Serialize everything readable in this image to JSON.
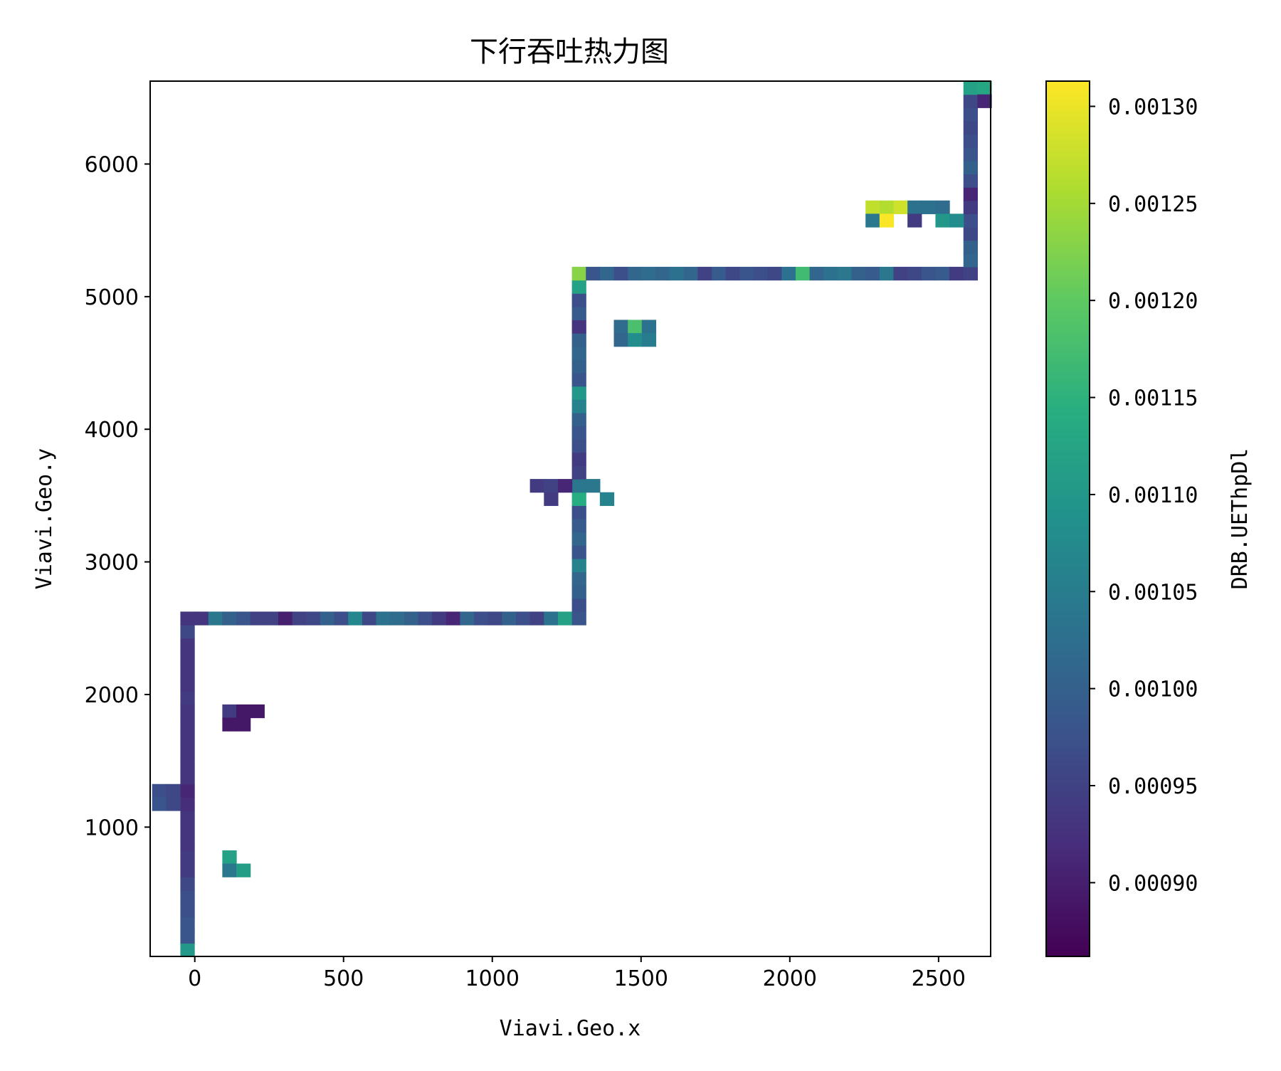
{
  "chart_data": {
    "type": "heatmap",
    "title": "下行吞吐热力图",
    "xlabel": "Viavi.Geo.x",
    "ylabel": "Viavi.Geo.y",
    "colorbar_label": "DRB.UEThpDl",
    "colormap": "viridis",
    "xlim": [
      -150,
      2675
    ],
    "ylim": [
      25,
      6625
    ],
    "clim": [
      0.000862,
      0.001313
    ],
    "xticks": [
      0,
      500,
      1000,
      1500,
      2000,
      2500
    ],
    "yticks": [
      1000,
      2000,
      3000,
      4000,
      5000,
      6000
    ],
    "colorbar_ticks": [
      "0.00090",
      "0.00095",
      "0.00100",
      "0.00105",
      "0.00110",
      "0.00115",
      "0.00120",
      "0.00125",
      "0.00130"
    ],
    "cell_size": [
      47,
      100
    ],
    "cells": [
      [
        -25,
        75,
        0.0011
      ],
      [
        -25,
        175,
        0.00098
      ],
      [
        -25,
        275,
        0.00098
      ],
      [
        -25,
        375,
        0.00097
      ],
      [
        -25,
        475,
        0.00097
      ],
      [
        -25,
        575,
        0.00096
      ],
      [
        -25,
        675,
        0.00094
      ],
      [
        -25,
        775,
        0.00094
      ],
      [
        -25,
        875,
        0.00093
      ],
      [
        -25,
        975,
        0.00093
      ],
      [
        -25,
        1075,
        0.00093
      ],
      [
        -25,
        1175,
        0.00092
      ],
      [
        -25,
        1275,
        0.00091
      ],
      [
        -25,
        1375,
        0.00093
      ],
      [
        -25,
        1475,
        0.00093
      ],
      [
        -25,
        1575,
        0.00093
      ],
      [
        -25,
        1675,
        0.00093
      ],
      [
        -25,
        1775,
        0.00093
      ],
      [
        -25,
        1875,
        0.00093
      ],
      [
        -25,
        1975,
        0.00094
      ],
      [
        -25,
        2075,
        0.00093
      ],
      [
        -25,
        2175,
        0.00093
      ],
      [
        -25,
        2275,
        0.00093
      ],
      [
        -25,
        2375,
        0.00093
      ],
      [
        -25,
        2475,
        0.00096
      ],
      [
        -25,
        2575,
        0.00093
      ],
      [
        -120,
        1275,
        0.00097
      ],
      [
        -73,
        1275,
        0.00096
      ],
      [
        -120,
        1175,
        0.00098
      ],
      [
        -73,
        1175,
        0.00096
      ],
      [
        22,
        2575,
        0.00093
      ],
      [
        69,
        2575,
        0.00104
      ],
      [
        116,
        2575,
        0.001
      ],
      [
        163,
        2575,
        0.00098
      ],
      [
        210,
        2575,
        0.00095
      ],
      [
        257,
        2575,
        0.00095
      ],
      [
        304,
        2575,
        0.0009
      ],
      [
        351,
        2575,
        0.00095
      ],
      [
        398,
        2575,
        0.00096
      ],
      [
        445,
        2575,
        0.001
      ],
      [
        492,
        2575,
        0.00097
      ],
      [
        539,
        2575,
        0.00107
      ],
      [
        586,
        2575,
        0.00096
      ],
      [
        633,
        2575,
        0.00103
      ],
      [
        680,
        2575,
        0.00102
      ],
      [
        727,
        2575,
        0.001
      ],
      [
        774,
        2575,
        0.00097
      ],
      [
        821,
        2575,
        0.00094
      ],
      [
        868,
        2575,
        0.00091
      ],
      [
        915,
        2575,
        0.00101
      ],
      [
        962,
        2575,
        0.00097
      ],
      [
        1009,
        2575,
        0.00096
      ],
      [
        1056,
        2575,
        0.001
      ],
      [
        1103,
        2575,
        0.00097
      ],
      [
        1150,
        2575,
        0.00095
      ],
      [
        1197,
        2575,
        0.00103
      ],
      [
        1244,
        2575,
        0.00112
      ],
      [
        1291,
        2575,
        0.00098
      ],
      [
        1291,
        2675,
        0.00097
      ],
      [
        1291,
        2775,
        0.001
      ],
      [
        1291,
        2875,
        0.00101
      ],
      [
        1291,
        2975,
        0.00106
      ],
      [
        1291,
        3075,
        0.00098
      ],
      [
        1291,
        3175,
        0.00101
      ],
      [
        1291,
        3275,
        0.00099
      ],
      [
        1291,
        3375,
        0.00097
      ],
      [
        1291,
        3475,
        0.00114
      ],
      [
        1291,
        3575,
        0.00104
      ],
      [
        1291,
        3675,
        0.00095
      ],
      [
        1291,
        3775,
        0.00094
      ],
      [
        1291,
        3875,
        0.00097
      ],
      [
        1291,
        3975,
        0.00098
      ],
      [
        1291,
        4075,
        0.001
      ],
      [
        1291,
        4175,
        0.00106
      ],
      [
        1291,
        4275,
        0.0011
      ],
      [
        1291,
        4375,
        0.00098
      ],
      [
        1291,
        4475,
        0.001
      ],
      [
        1291,
        4575,
        0.00101
      ],
      [
        1291,
        4675,
        0.001
      ],
      [
        1291,
        4775,
        0.00093
      ],
      [
        1291,
        4875,
        0.00099
      ],
      [
        1291,
        4975,
        0.00097
      ],
      [
        1291,
        5075,
        0.00112
      ],
      [
        1291,
        5175,
        0.00123
      ],
      [
        1150,
        3575,
        0.00094
      ],
      [
        1197,
        3575,
        0.00095
      ],
      [
        1244,
        3575,
        0.00091
      ],
      [
        1338,
        3575,
        0.00104
      ],
      [
        1197,
        3475,
        0.00094
      ],
      [
        1385,
        3475,
        0.00106
      ],
      [
        1432,
        4775,
        0.00102
      ],
      [
        1479,
        4775,
        0.00118
      ],
      [
        1526,
        4775,
        0.00103
      ],
      [
        1432,
        4675,
        0.00101
      ],
      [
        1479,
        4675,
        0.00108
      ],
      [
        1526,
        4675,
        0.00105
      ],
      [
        1338,
        5175,
        0.00098
      ],
      [
        1385,
        5175,
        0.00101
      ],
      [
        1432,
        5175,
        0.00097
      ],
      [
        1479,
        5175,
        0.00101
      ],
      [
        1526,
        5175,
        0.00102
      ],
      [
        1573,
        5175,
        0.00101
      ],
      [
        1620,
        5175,
        0.00103
      ],
      [
        1667,
        5175,
        0.00101
      ],
      [
        1714,
        5175,
        0.00095
      ],
      [
        1761,
        5175,
        0.00099
      ],
      [
        1808,
        5175,
        0.00096
      ],
      [
        1855,
        5175,
        0.00098
      ],
      [
        1902,
        5175,
        0.00097
      ],
      [
        1949,
        5175,
        0.00096
      ],
      [
        1996,
        5175,
        0.00103
      ],
      [
        2043,
        5175,
        0.00117
      ],
      [
        2090,
        5175,
        0.00101
      ],
      [
        2137,
        5175,
        0.00103
      ],
      [
        2184,
        5175,
        0.00104
      ],
      [
        2231,
        5175,
        0.001
      ],
      [
        2278,
        5175,
        0.00099
      ],
      [
        2325,
        5175,
        0.00104
      ],
      [
        2372,
        5175,
        0.00095
      ],
      [
        2419,
        5175,
        0.00096
      ],
      [
        2466,
        5175,
        0.00098
      ],
      [
        2513,
        5175,
        0.00099
      ],
      [
        2560,
        5175,
        0.00094
      ],
      [
        2607,
        5175,
        0.00095
      ],
      [
        2607,
        5275,
        0.00101
      ],
      [
        2607,
        5375,
        0.001
      ],
      [
        2607,
        5475,
        0.00096
      ],
      [
        2607,
        5575,
        0.00097
      ],
      [
        2607,
        5675,
        0.00094
      ],
      [
        2607,
        5775,
        0.00091
      ],
      [
        2607,
        5875,
        0.00097
      ],
      [
        2607,
        5975,
        0.001
      ],
      [
        2607,
        6075,
        0.00098
      ],
      [
        2607,
        6175,
        0.00097
      ],
      [
        2607,
        6275,
        0.00096
      ],
      [
        2607,
        6375,
        0.00097
      ],
      [
        2607,
        6475,
        0.00096
      ],
      [
        2607,
        6575,
        0.00112
      ],
      [
        2654,
        6575,
        0.00113
      ],
      [
        2654,
        6475,
        0.00091
      ],
      [
        2278,
        5675,
        0.00127
      ],
      [
        2325,
        5675,
        0.00126
      ],
      [
        2372,
        5675,
        0.00128
      ],
      [
        2419,
        5675,
        0.00103
      ],
      [
        2466,
        5675,
        0.00103
      ],
      [
        2513,
        5675,
        0.00102
      ],
      [
        2278,
        5575,
        0.00104
      ],
      [
        2325,
        5575,
        0.00131
      ],
      [
        2419,
        5575,
        0.00094
      ],
      [
        2513,
        5575,
        0.0011
      ],
      [
        2560,
        5575,
        0.00108
      ],
      [
        116,
        1875,
        0.00094
      ],
      [
        163,
        1875,
        0.00089
      ],
      [
        210,
        1875,
        0.00089
      ],
      [
        116,
        1775,
        0.00089
      ],
      [
        163,
        1775,
        0.00089
      ],
      [
        116,
        775,
        0.00112
      ],
      [
        116,
        675,
        0.00104
      ],
      [
        163,
        675,
        0.00111
      ]
    ]
  }
}
